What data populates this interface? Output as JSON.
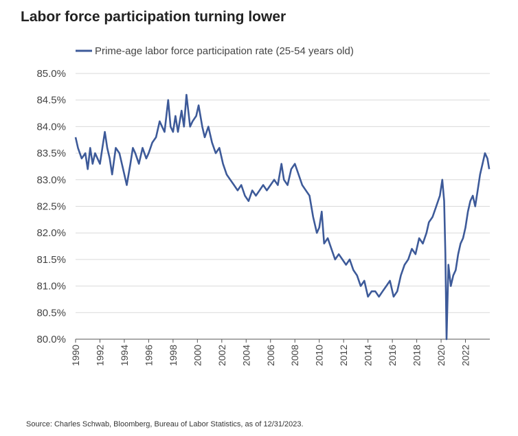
{
  "title": "Labor force participation turning lower",
  "source": "Source: Charles Schwab, Bloomberg, Bureau of Labor Statistics, as of 12/31/2023.",
  "chart_data": {
    "type": "line",
    "ylim": [
      80.0,
      85.0
    ],
    "xlim": [
      1990,
      2024
    ],
    "y_ticks": [
      "85.0%",
      "84.5%",
      "84.0%",
      "83.5%",
      "83.0%",
      "82.5%",
      "82.0%",
      "81.5%",
      "81.0%",
      "80.5%",
      "80.0%"
    ],
    "y_tick_values": [
      85.0,
      84.5,
      84.0,
      83.5,
      83.0,
      82.5,
      82.0,
      81.5,
      81.0,
      80.5,
      80.0
    ],
    "x_ticks": [
      "1990",
      "1992",
      "1994",
      "1996",
      "1998",
      "2000",
      "2002",
      "2004",
      "2006",
      "2008",
      "2010",
      "2012",
      "2014",
      "2016",
      "2018",
      "2020",
      "2022"
    ],
    "x_tick_values": [
      1990,
      1992,
      1994,
      1996,
      1998,
      2000,
      2002,
      2004,
      2006,
      2008,
      2010,
      2012,
      2014,
      2016,
      2018,
      2020,
      2022
    ],
    "grid": "horizontal",
    "legend": "top",
    "colors": {
      "line": "#3d5a99",
      "grid": "#d9d9d9",
      "axis": "#555555"
    },
    "series": [
      {
        "name": "Prime-age labor force participation rate (25-54 years old)",
        "x": [
          1990.0,
          1990.2,
          1990.5,
          1990.8,
          1991.0,
          1991.2,
          1991.4,
          1991.6,
          1991.8,
          1992.0,
          1992.2,
          1992.4,
          1992.6,
          1992.8,
          1993.0,
          1993.3,
          1993.6,
          1993.9,
          1994.2,
          1994.5,
          1994.7,
          1994.9,
          1995.2,
          1995.5,
          1995.8,
          1996.0,
          1996.3,
          1996.6,
          1996.9,
          1997.1,
          1997.3,
          1997.6,
          1997.8,
          1998.0,
          1998.2,
          1998.4,
          1998.7,
          1998.9,
          1999.1,
          1999.4,
          1999.6,
          1999.9,
          2000.1,
          2000.4,
          2000.6,
          2000.9,
          2001.2,
          2001.5,
          2001.8,
          2002.1,
          2002.4,
          2002.7,
          2003.0,
          2003.3,
          2003.6,
          2003.9,
          2004.2,
          2004.5,
          2004.8,
          2005.1,
          2005.4,
          2005.7,
          2006.0,
          2006.3,
          2006.6,
          2006.9,
          2007.1,
          2007.4,
          2007.7,
          2008.0,
          2008.3,
          2008.6,
          2008.9,
          2009.2,
          2009.5,
          2009.8,
          2010.0,
          2010.2,
          2010.4,
          2010.7,
          2011.0,
          2011.3,
          2011.6,
          2011.9,
          2012.2,
          2012.5,
          2012.8,
          2013.1,
          2013.4,
          2013.7,
          2014.0,
          2014.3,
          2014.6,
          2014.9,
          2015.2,
          2015.5,
          2015.8,
          2016.1,
          2016.4,
          2016.7,
          2017.0,
          2017.3,
          2017.6,
          2017.9,
          2018.2,
          2018.5,
          2018.8,
          2019.0,
          2019.3,
          2019.6,
          2019.9,
          2020.1,
          2020.25,
          2020.35,
          2020.45,
          2020.6,
          2020.8,
          2021.0,
          2021.2,
          2021.4,
          2021.6,
          2021.8,
          2022.0,
          2022.2,
          2022.4,
          2022.6,
          2022.8,
          2023.0,
          2023.2,
          2023.4,
          2023.6,
          2023.8,
          2023.95
        ],
        "values": [
          83.8,
          83.6,
          83.4,
          83.5,
          83.2,
          83.6,
          83.3,
          83.5,
          83.4,
          83.3,
          83.6,
          83.9,
          83.6,
          83.4,
          83.1,
          83.6,
          83.5,
          83.2,
          82.9,
          83.3,
          83.6,
          83.5,
          83.3,
          83.6,
          83.4,
          83.5,
          83.7,
          83.8,
          84.1,
          84.0,
          83.9,
          84.5,
          84.0,
          83.9,
          84.2,
          83.9,
          84.3,
          84.0,
          84.6,
          84.0,
          84.1,
          84.2,
          84.4,
          84.0,
          83.8,
          84.0,
          83.7,
          83.5,
          83.6,
          83.3,
          83.1,
          83.0,
          82.9,
          82.8,
          82.9,
          82.7,
          82.6,
          82.8,
          82.7,
          82.8,
          82.9,
          82.8,
          82.9,
          83.0,
          82.9,
          83.3,
          83.0,
          82.9,
          83.2,
          83.3,
          83.1,
          82.9,
          82.8,
          82.7,
          82.3,
          82.0,
          82.1,
          82.4,
          81.8,
          81.9,
          81.7,
          81.5,
          81.6,
          81.5,
          81.4,
          81.5,
          81.3,
          81.2,
          81.0,
          81.1,
          80.8,
          80.9,
          80.9,
          80.8,
          80.9,
          81.0,
          81.1,
          80.8,
          80.9,
          81.2,
          81.4,
          81.5,
          81.7,
          81.6,
          81.9,
          81.8,
          82.0,
          82.2,
          82.3,
          82.5,
          82.7,
          83.0,
          82.6,
          81.6,
          80.0,
          81.4,
          81.0,
          81.2,
          81.3,
          81.6,
          81.8,
          81.9,
          82.1,
          82.4,
          82.6,
          82.7,
          82.5,
          82.8,
          83.1,
          83.3,
          83.5,
          83.4,
          83.2
        ]
      }
    ]
  }
}
